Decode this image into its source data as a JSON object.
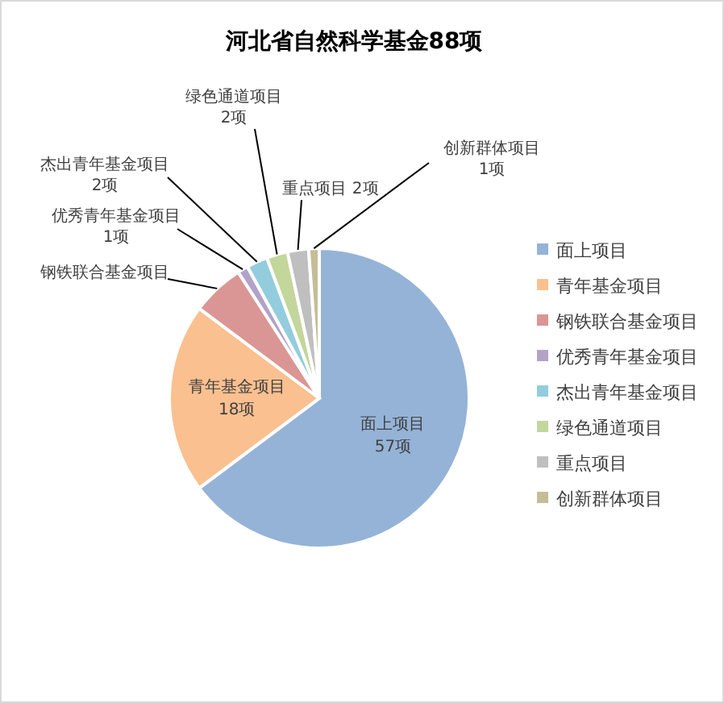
{
  "chart_data": {
    "type": "pie",
    "title": "河北省自然科学基金88项",
    "categories": [
      "面上项目",
      "青年基金项目",
      "钢铁联合基金项目",
      "优秀青年基金项目",
      "杰出青年基金项目",
      "绿色通道项目",
      "重点项目",
      "创新群体项目"
    ],
    "values": [
      57,
      18,
      5,
      1,
      2,
      2,
      2,
      1
    ],
    "value_labels": [
      "57项",
      "18项",
      null,
      "1项",
      "2项",
      "2项",
      "2项",
      "1项"
    ],
    "colors": [
      "#95b3d7",
      "#fac090",
      "#d99694",
      "#b3a2c7",
      "#93cddd",
      "#c3d69b",
      "#bfbfbf",
      "#c4bd97"
    ],
    "legend": "right"
  }
}
